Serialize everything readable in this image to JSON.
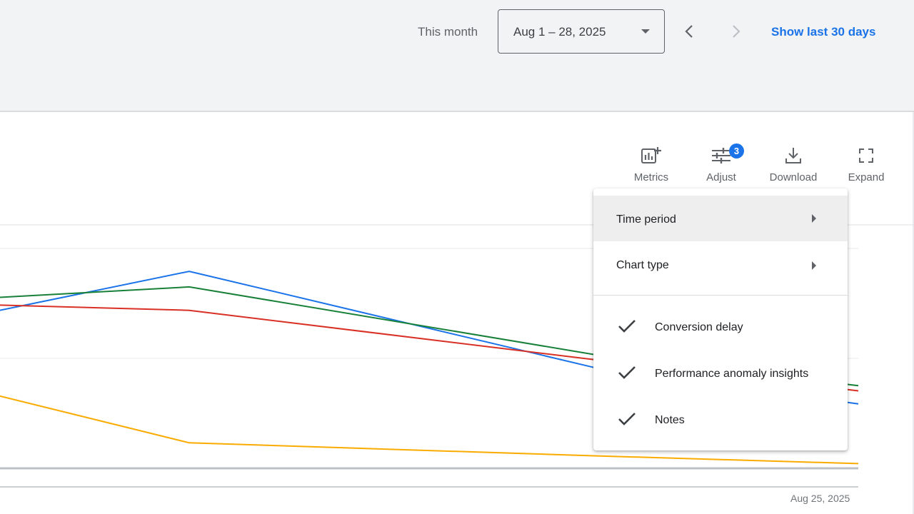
{
  "header": {
    "period_label": "This month",
    "date_range": "Aug 1 – 28, 2025",
    "show_last_label": "Show last 30 days"
  },
  "toolbar": {
    "metrics_label": "Metrics",
    "adjust_label": "Adjust",
    "adjust_badge": "3",
    "download_label": "Download",
    "expand_label": "Expand"
  },
  "menu": {
    "time_period": "Time period",
    "chart_type": "Chart type",
    "conversion_delay": "Conversion delay",
    "anomaly_insights": "Performance anomaly insights",
    "notes": "Notes"
  },
  "chart_data": {
    "type": "line",
    "x_end_label": "Aug 25, 2025",
    "series": [
      {
        "color": "#1a73e8",
        "values": [
          0.63,
          0.78,
          0.41,
          0.27
        ]
      },
      {
        "color": "#188038",
        "values": [
          0.68,
          0.72,
          0.46,
          0.34
        ]
      },
      {
        "color": "#d93025",
        "values": [
          0.65,
          0.63,
          0.44,
          0.32
        ]
      },
      {
        "color": "#f9ab00",
        "values": [
          0.3,
          0.12,
          0.07,
          0.04
        ]
      }
    ],
    "grid": true
  },
  "colors": {
    "accent": "#1a73e8",
    "topbar_bg": "#f1f3f4"
  }
}
